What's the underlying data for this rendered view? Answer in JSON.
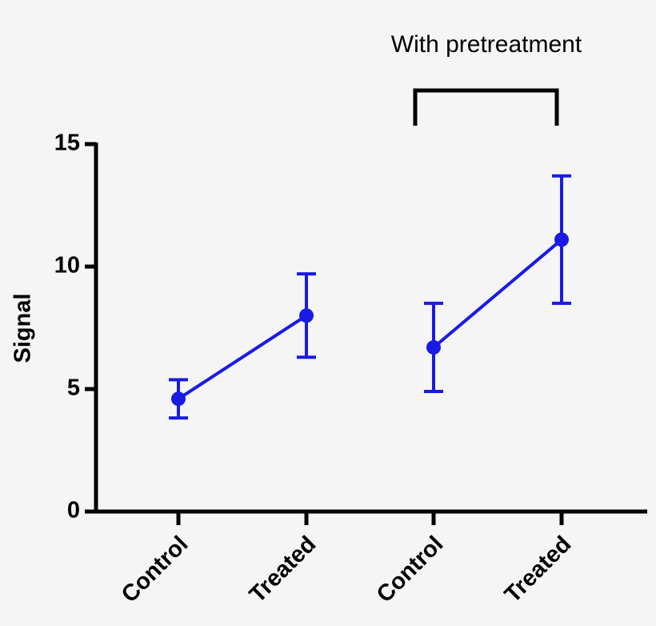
{
  "chart_data": {
    "type": "line",
    "annotation": "With pretreatment",
    "y_label": "Signal",
    "categories": [
      "Control",
      "Treated",
      "Control",
      "Treated"
    ],
    "series": [
      {
        "color": "#1a1ae6",
        "values": [
          4.6,
          8.0,
          null,
          null
        ],
        "errors": [
          0.78,
          1.7,
          null,
          null
        ]
      },
      {
        "color": "#1a1ae6",
        "values": [
          null,
          null,
          6.7,
          11.1
        ],
        "errors": [
          null,
          null,
          1.8,
          2.6
        ]
      }
    ],
    "ylim": [
      0,
      15
    ],
    "yticks": [
      0,
      5,
      10,
      15
    ]
  }
}
